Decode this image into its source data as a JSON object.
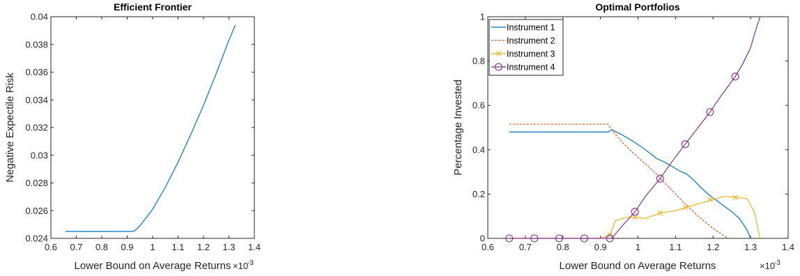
{
  "chart_data": [
    {
      "type": "line",
      "title": "Efficient Frontier",
      "xlabel": "Lower Bound on Average Returns",
      "ylabel": "Negative Expectile Risk",
      "x_exponent_label": "×10",
      "x_exponent": "-3",
      "xlim": [
        0.6,
        1.4
      ],
      "ylim": [
        0.024,
        0.04
      ],
      "xticks": [
        "0.6",
        "0.7",
        "0.8",
        "0.9",
        "1",
        "1.1",
        "1.2",
        "1.3",
        "1.4"
      ],
      "yticks": [
        "0.024",
        "0.026",
        "0.028",
        "0.03",
        "0.032",
        "0.034",
        "0.036",
        "0.038",
        "0.04"
      ],
      "grid": false,
      "series": [
        {
          "color": "#0072BD",
          "x": [
            0.657,
            0.7,
            0.75,
            0.8,
            0.85,
            0.9,
            0.92,
            0.93,
            0.95,
            1.0,
            1.05,
            1.1,
            1.15,
            1.2,
            1.25,
            1.3,
            1.325
          ],
          "y": [
            0.0245,
            0.0245,
            0.0245,
            0.0245,
            0.0245,
            0.0245,
            0.0245,
            0.02455,
            0.0249,
            0.0261,
            0.0277,
            0.0295,
            0.0315,
            0.0336,
            0.0359,
            0.0383,
            0.0394
          ]
        }
      ]
    },
    {
      "type": "line",
      "title": "Optimal Portfolios",
      "xlabel": "Lower Bound on Average Returns",
      "ylabel": "Percentage Invested",
      "x_exponent_label": "×10",
      "x_exponent": "-3",
      "xlim": [
        0.6,
        1.4
      ],
      "ylim": [
        0,
        1
      ],
      "xticks": [
        "0.6",
        "0.7",
        "0.8",
        "0.9",
        "1",
        "1.1",
        "1.2",
        "1.3",
        "1.4"
      ],
      "yticks": [
        "0",
        "0.2",
        "0.4",
        "0.6",
        "0.8",
        "1"
      ],
      "grid": false,
      "legend": "top-left",
      "series": [
        {
          "name": "Instrument 1",
          "color": "#0072BD",
          "style": "solid",
          "marker": "none",
          "x": [
            0.657,
            0.7,
            0.8,
            0.9,
            0.92,
            0.93,
            0.96,
            0.99,
            1.02,
            1.05,
            1.07,
            1.09,
            1.11,
            1.13,
            1.15,
            1.17,
            1.19,
            1.21,
            1.23,
            1.25,
            1.27,
            1.29,
            1.3
          ],
          "y": [
            0.48,
            0.48,
            0.48,
            0.48,
            0.48,
            0.49,
            0.465,
            0.435,
            0.4,
            0.36,
            0.345,
            0.325,
            0.305,
            0.29,
            0.26,
            0.225,
            0.195,
            0.17,
            0.145,
            0.12,
            0.09,
            0.04,
            0.0
          ]
        },
        {
          "name": "Instrument 2",
          "color": "#D95319",
          "style": "dashed",
          "marker": "none",
          "x": [
            0.657,
            0.7,
            0.8,
            0.9,
            0.92,
            0.93,
            0.96,
            1.0,
            1.04,
            1.08,
            1.12,
            1.16,
            1.2,
            1.23,
            1.24
          ],
          "y": [
            0.515,
            0.515,
            0.515,
            0.515,
            0.515,
            0.49,
            0.43,
            0.365,
            0.305,
            0.235,
            0.165,
            0.1,
            0.045,
            0.01,
            0.0
          ]
        },
        {
          "name": "Instrument 3",
          "color": "#EDB120",
          "style": "solid",
          "marker": "x",
          "x": [
            0.657,
            0.7,
            0.8,
            0.9,
            0.925,
            0.94,
            0.97,
            0.995,
            1.02,
            1.06,
            1.1,
            1.13,
            1.16,
            1.2,
            1.23,
            1.26,
            1.29,
            1.31,
            1.325
          ],
          "y": [
            0.0,
            0.0,
            0.0,
            0.0,
            0.015,
            0.08,
            0.095,
            0.095,
            0.09,
            0.115,
            0.125,
            0.14,
            0.155,
            0.175,
            0.19,
            0.185,
            0.18,
            0.12,
            0.0
          ],
          "marker_x": [
            0.925,
            0.992,
            1.059,
            1.126,
            1.192,
            1.259
          ],
          "marker_y": [
            0.015,
            0.095,
            0.115,
            0.14,
            0.175,
            0.185
          ]
        },
        {
          "name": "Instrument 4",
          "color": "#7E2F8E",
          "style": "solid",
          "marker": "o",
          "x": [
            0.657,
            0.7,
            0.8,
            0.9,
            0.93,
            0.96,
            0.992,
            1.02,
            1.059,
            1.09,
            1.126,
            1.16,
            1.192,
            1.22,
            1.259,
            1.28,
            1.3,
            1.31,
            1.325
          ],
          "y": [
            0.0,
            0.0,
            0.0,
            0.0,
            0.0,
            0.06,
            0.12,
            0.19,
            0.27,
            0.345,
            0.425,
            0.5,
            0.57,
            0.64,
            0.73,
            0.79,
            0.86,
            0.92,
            1.0
          ],
          "marker_x": [
            0.657,
            0.724,
            0.79,
            0.857,
            0.925,
            0.992,
            1.059,
            1.126,
            1.192,
            1.259
          ],
          "marker_y": [
            0.0,
            0.0,
            0.0,
            0.0,
            0.0,
            0.12,
            0.27,
            0.425,
            0.57,
            0.73
          ]
        }
      ]
    }
  ]
}
